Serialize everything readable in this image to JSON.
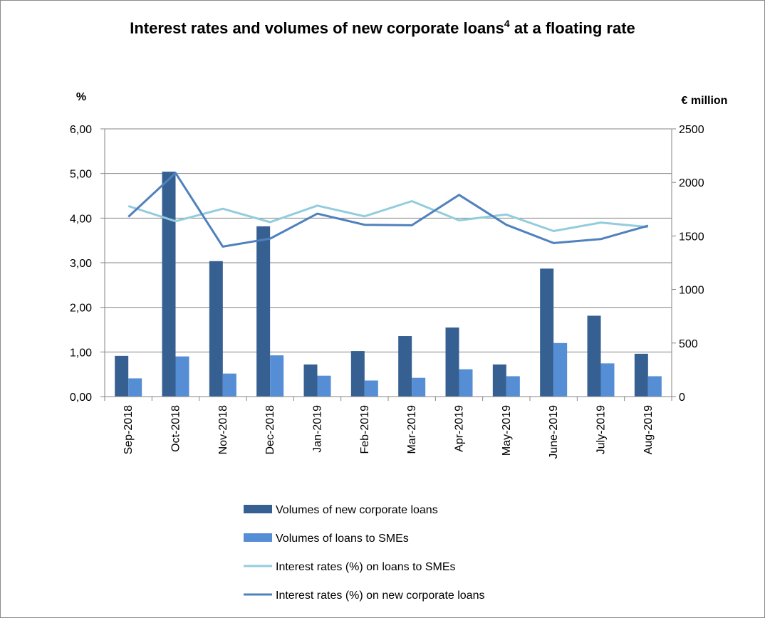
{
  "chart_data": {
    "type": "bar",
    "title_main": "Interest rates and volumes of new corporate loans",
    "title_sup": "4",
    "title_rest": " at a floating rate",
    "y_left_unit": "%",
    "y_right_unit": "€ million",
    "y_left_range": [
      0,
      6
    ],
    "y_left_ticks": [
      "0,00",
      "1,00",
      "2,00",
      "3,00",
      "4,00",
      "5,00",
      "6,00"
    ],
    "y_right_range": [
      0,
      2500
    ],
    "y_right_ticks": [
      "0",
      "500",
      "1000",
      "1500",
      "2000",
      "2500"
    ],
    "grid": true,
    "legend_position": "bottom",
    "categories": [
      "Sep-2018",
      "Oct-2018",
      "Nov-2018",
      "Dec-2018",
      "Jan-2019",
      "Feb-2019",
      "Mar-2019",
      "Apr-2019",
      "May-2019",
      "June-2019",
      "July-2019",
      "Aug-2019"
    ],
    "series": [
      {
        "name": "Volumes of new corporate loans",
        "kind": "bar",
        "axis": "right",
        "color": "#376092",
        "values": [
          380,
          2100,
          1265,
          1590,
          300,
          425,
          565,
          645,
          300,
          1195,
          755,
          400
        ]
      },
      {
        "name": "Volumes of loans to SMEs",
        "kind": "bar",
        "axis": "right",
        "color": "#558ED5",
        "values": [
          170,
          375,
          215,
          385,
          195,
          150,
          175,
          255,
          190,
          500,
          310,
          190
        ]
      },
      {
        "name": "Interest rates (%) on loans to SMEs",
        "kind": "line",
        "axis": "left",
        "color": "#93CDDD",
        "values": [
          4.27,
          3.93,
          4.21,
          3.91,
          4.28,
          4.04,
          4.38,
          3.95,
          4.08,
          3.71,
          3.9,
          3.8
        ]
      },
      {
        "name": "Interest rates (%) on new corporate loans",
        "kind": "line",
        "axis": "left",
        "color": "#4F81BD",
        "values": [
          4.03,
          5.01,
          3.36,
          3.54,
          4.1,
          3.85,
          3.84,
          4.52,
          3.85,
          3.44,
          3.53,
          3.83
        ]
      }
    ]
  }
}
